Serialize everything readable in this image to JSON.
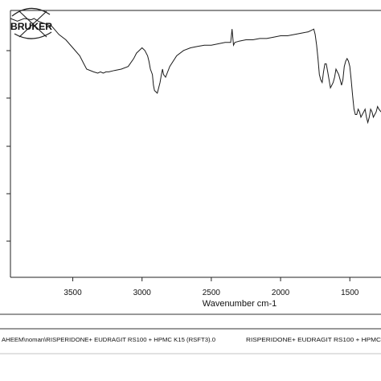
{
  "chart_data": {
    "type": "line",
    "xlabel": "Wavenumber cm-1",
    "ylabel": "",
    "title": "",
    "xlim": [
      3950,
      1275
    ],
    "ylim": [
      0,
      100
    ],
    "x_ticks": [
      3500,
      3000,
      2500,
      2000,
      1500
    ],
    "grid": false,
    "series": [
      {
        "x": [
          3950,
          3900,
          3850,
          3800,
          3780,
          3750,
          3700,
          3650,
          3600,
          3550,
          3500,
          3450,
          3420,
          3400,
          3350,
          3320,
          3300,
          3280,
          3260,
          3240,
          3200,
          3150,
          3100,
          3060,
          3040,
          3020,
          3000,
          2980,
          2960,
          2950,
          2940,
          2925,
          2918,
          2910,
          2890,
          2870,
          2860,
          2852,
          2845,
          2830,
          2800,
          2750,
          2700,
          2650,
          2600,
          2550,
          2500,
          2450,
          2400,
          2360,
          2350,
          2340,
          2330,
          2300,
          2250,
          2200,
          2150,
          2100,
          2050,
          2000,
          1950,
          1900,
          1850,
          1800,
          1780,
          1760,
          1750,
          1740,
          1730,
          1720,
          1710,
          1700,
          1690,
          1680,
          1670,
          1660,
          1650,
          1640,
          1630,
          1620,
          1610,
          1600,
          1590,
          1580,
          1570,
          1560,
          1550,
          1540,
          1530,
          1520,
          1510,
          1500,
          1490,
          1480,
          1470,
          1460,
          1450,
          1440,
          1430,
          1420,
          1410,
          1400,
          1390,
          1380,
          1370,
          1360,
          1350,
          1340,
          1330,
          1320,
          1310,
          1300,
          1290,
          1275
        ],
        "values": [
          97,
          96,
          97,
          96.5,
          97,
          96,
          95,
          94,
          91,
          89,
          86,
          83,
          80,
          78,
          77,
          76.5,
          77,
          76.5,
          77,
          77,
          77.5,
          78,
          79,
          82,
          84,
          85,
          86,
          85,
          83,
          81,
          78,
          76,
          72,
          70,
          69,
          73,
          76,
          78,
          76,
          75,
          79,
          83,
          85,
          86,
          86.5,
          87,
          87,
          87.5,
          88,
          88,
          93,
          87,
          88,
          88.5,
          89,
          89,
          89.5,
          89.5,
          90,
          90.5,
          90.5,
          91,
          91.5,
          92,
          92.5,
          93,
          91,
          87,
          82,
          76,
          74,
          73,
          77,
          80,
          80,
          77,
          74,
          71,
          72,
          73,
          75,
          78,
          77,
          76,
          74,
          72,
          74,
          79,
          81,
          82,
          81,
          79,
          74,
          68,
          63,
          61,
          61,
          63,
          62,
          60,
          61,
          62,
          63,
          60,
          58,
          60,
          63,
          62,
          60,
          61,
          62,
          64,
          63,
          62
        ]
      }
    ]
  },
  "logo": {
    "text": "BRUKER"
  },
  "footer": {
    "path_text": "AHEEM\\noman\\RISPERIDONE+ EUDRAGIT RS100 + HPMC K15 (RSFT3).0",
    "sample_text": "RISPERIDONE+ EUDRAGIT RS100 + HPMC"
  }
}
